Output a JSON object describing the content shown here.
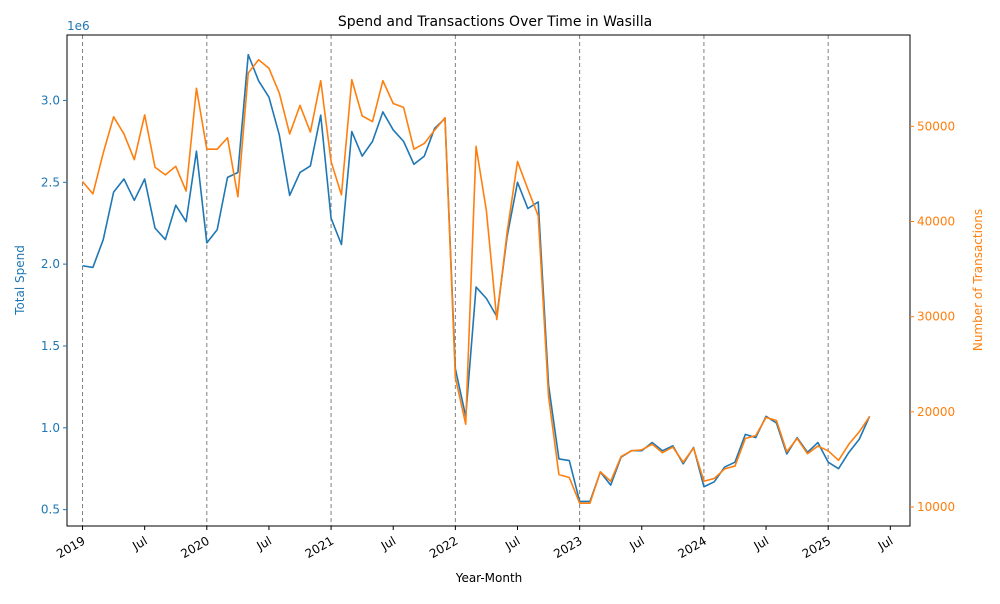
{
  "chart_data": {
    "type": "line",
    "title": "Spend and Transactions Over Time in Wasilla",
    "xlabel": "Year-Month",
    "ylabel_left": "Total Spend",
    "ylabel_right": "Number of Transactions",
    "left_axis_offset_label": "1e6",
    "left_color": "#1f77b4",
    "right_color": "#ff7f0e",
    "x_start": "2019-01",
    "x_end": "2025-08",
    "xlim": [
      "2018-11",
      "2025-08"
    ],
    "ylim_left": [
      0.4,
      3.4
    ],
    "ylim_right": [
      8000,
      59600
    ],
    "grid": false,
    "year_marker_lines": [
      "2019-01",
      "2020-01",
      "2021-01",
      "2022-01",
      "2023-01",
      "2024-01",
      "2025-01"
    ],
    "x_ticks": [
      {
        "date": "2019-01",
        "label": "2019"
      },
      {
        "date": "2019-07",
        "label": "Jul"
      },
      {
        "date": "2020-01",
        "label": "2020"
      },
      {
        "date": "2020-07",
        "label": "Jul"
      },
      {
        "date": "2021-01",
        "label": "2021"
      },
      {
        "date": "2021-07",
        "label": "Jul"
      },
      {
        "date": "2022-01",
        "label": "2022"
      },
      {
        "date": "2022-07",
        "label": "Jul"
      },
      {
        "date": "2023-01",
        "label": "2023"
      },
      {
        "date": "2023-07",
        "label": "Jul"
      },
      {
        "date": "2024-01",
        "label": "2024"
      },
      {
        "date": "2024-07",
        "label": "Jul"
      },
      {
        "date": "2025-01",
        "label": "2025"
      },
      {
        "date": "2025-07",
        "label": "Jul"
      }
    ],
    "y_ticks_left": [
      {
        "value": 0.5,
        "label": "0.5"
      },
      {
        "value": 1.0,
        "label": "1.0"
      },
      {
        "value": 1.5,
        "label": "1.5"
      },
      {
        "value": 2.0,
        "label": "2.0"
      },
      {
        "value": 2.5,
        "label": "2.5"
      },
      {
        "value": 3.0,
        "label": "3.0"
      }
    ],
    "y_ticks_right": [
      {
        "value": 10000,
        "label": "10000"
      },
      {
        "value": 20000,
        "label": "20000"
      },
      {
        "value": 30000,
        "label": "30000"
      },
      {
        "value": 40000,
        "label": "40000"
      },
      {
        "value": 50000,
        "label": "50000"
      }
    ],
    "series": [
      {
        "name": "Total Spend",
        "axis": "left",
        "unit_multiplier": 1000000,
        "values": [
          1.99,
          1.98,
          2.15,
          2.44,
          2.52,
          2.39,
          2.52,
          2.22,
          2.15,
          2.36,
          2.26,
          2.69,
          2.13,
          2.21,
          2.53,
          2.56,
          3.28,
          3.12,
          3.02,
          2.79,
          2.42,
          2.56,
          2.6,
          2.91,
          2.28,
          2.12,
          2.81,
          2.66,
          2.75,
          2.93,
          2.82,
          2.75,
          2.61,
          2.66,
          2.83,
          2.89,
          1.36,
          1.07,
          1.86,
          1.79,
          1.68,
          2.17,
          2.5,
          2.34,
          2.38,
          1.26,
          0.81,
          0.8,
          0.55,
          0.55,
          0.73,
          0.65,
          0.82,
          0.86,
          0.86,
          0.91,
          0.86,
          0.89,
          0.78,
          0.88,
          0.64,
          0.67,
          0.76,
          0.79,
          0.96,
          0.94,
          1.07,
          1.03,
          0.84,
          0.94,
          0.85,
          0.91,
          0.79,
          0.75,
          0.85,
          0.93,
          1.07
        ]
      },
      {
        "name": "Number of Transactions",
        "axis": "right",
        "values": [
          44200,
          42900,
          47200,
          51000,
          49200,
          46500,
          51200,
          45700,
          44900,
          45800,
          43200,
          54000,
          47600,
          47600,
          48800,
          42600,
          55600,
          57000,
          56100,
          53500,
          49200,
          52200,
          49400,
          54800,
          46300,
          42800,
          54900,
          51100,
          50500,
          54800,
          52400,
          52000,
          47600,
          48200,
          49600,
          50900,
          23600,
          18700,
          47900,
          41100,
          29700,
          38900,
          46300,
          43400,
          40600,
          21600,
          13400,
          13100,
          10400,
          10400,
          13700,
          12700,
          15300,
          15900,
          16000,
          16600,
          15700,
          16300,
          14700,
          16200,
          12700,
          13000,
          14000,
          14300,
          17200,
          17500,
          19400,
          19100,
          15800,
          17200,
          15600,
          16400,
          15900,
          14900,
          16600,
          17900,
          19500
        ]
      }
    ]
  }
}
